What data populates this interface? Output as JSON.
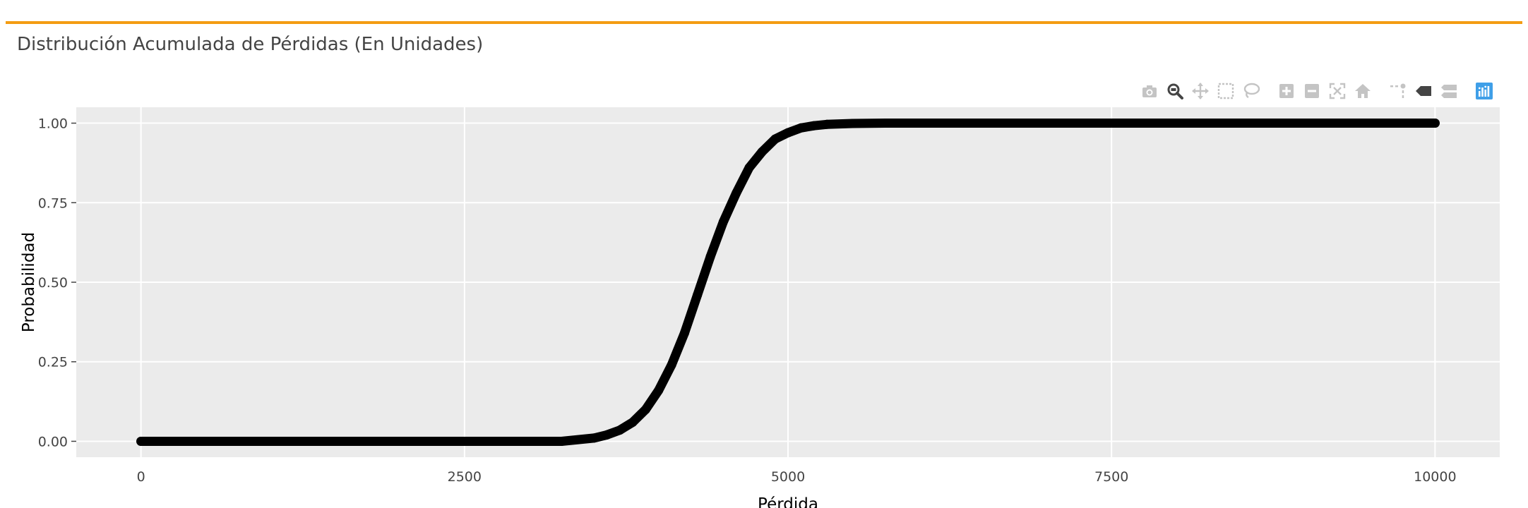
{
  "panel": {
    "title": "Distribución Acumulada de Pérdidas (En Unidades)"
  },
  "colors": {
    "accent": "#f39c12",
    "plot_background": "#ebebeb",
    "grid": "#ffffff",
    "series": "#000000",
    "modebar_icon": "#c4c4c4",
    "modebar_active": "#444444",
    "plotly_logo": "#3f9fe8"
  },
  "modebar": {
    "buttons": [
      {
        "name": "camera-icon",
        "group": 0
      },
      {
        "name": "zoom-icon",
        "group": 0,
        "active": true
      },
      {
        "name": "pan-icon",
        "group": 0
      },
      {
        "name": "box-select-icon",
        "group": 0
      },
      {
        "name": "lasso-select-icon",
        "group": 0
      },
      {
        "name": "zoom-in-icon",
        "group": 1
      },
      {
        "name": "zoom-out-icon",
        "group": 1
      },
      {
        "name": "autoscale-icon",
        "group": 1
      },
      {
        "name": "reset-axes-icon",
        "group": 1
      },
      {
        "name": "spike-lines-icon",
        "group": 2
      },
      {
        "name": "hover-closest-icon",
        "group": 2,
        "active": true
      },
      {
        "name": "hover-compare-icon",
        "group": 2
      },
      {
        "name": "plotly-logo-icon",
        "group": 3
      }
    ]
  },
  "chart_data": {
    "type": "scatter",
    "title": "",
    "xlabel": "Pérdida",
    "ylabel": "Probabilidad",
    "xlim": [
      -500,
      10500
    ],
    "ylim": [
      -0.05,
      1.05
    ],
    "xticks": [
      0,
      2500,
      5000,
      7500,
      10000
    ],
    "xtick_labels": [
      "0",
      "2500",
      "5000",
      "7500",
      "10000"
    ],
    "yticks": [
      0,
      0.25,
      0.5,
      0.75,
      1.0
    ],
    "ytick_labels": [
      "0.00",
      "0.25",
      "0.50",
      "0.75",
      "1.00"
    ],
    "grid": true,
    "legend": "none",
    "series": [
      {
        "x": [
          0,
          500,
          1000,
          1500,
          2000,
          2500,
          3000,
          3250,
          3500,
          3600,
          3700,
          3800,
          3900,
          4000,
          4100,
          4200,
          4300,
          4400,
          4500,
          4600,
          4700,
          4800,
          4900,
          5000,
          5100,
          5200,
          5300,
          5500,
          5750,
          6000,
          6500,
          7000,
          7500,
          8000,
          8500,
          9000,
          9500,
          10000
        ],
        "y": [
          0.0,
          0.0,
          0.0,
          0.0,
          0.0,
          0.0,
          0.0,
          0.0,
          0.01,
          0.02,
          0.035,
          0.06,
          0.1,
          0.16,
          0.24,
          0.34,
          0.46,
          0.58,
          0.69,
          0.78,
          0.86,
          0.91,
          0.95,
          0.97,
          0.985,
          0.992,
          0.996,
          0.999,
          1.0,
          1.0,
          1.0,
          1.0,
          1.0,
          1.0,
          1.0,
          1.0,
          1.0,
          1.0
        ]
      }
    ]
  }
}
